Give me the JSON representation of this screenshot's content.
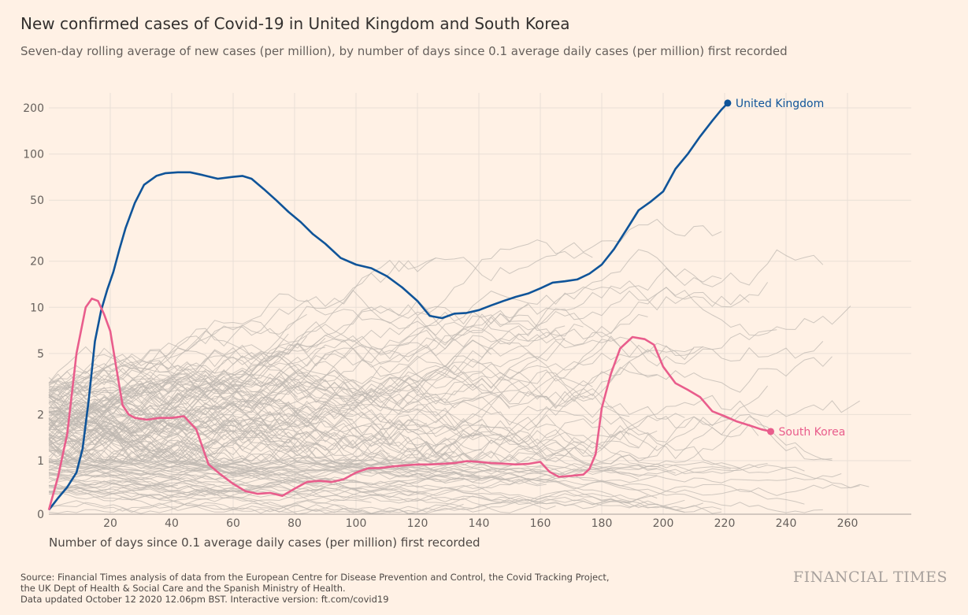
{
  "chart_data": {
    "type": "line",
    "title": "New confirmed cases of Covid-19 in United Kingdom and South Korea",
    "subtitle": "Seven-day rolling average of new cases (per million), by number of days since 0.1 average daily cases (per million) first recorded",
    "xlabel": "Number of days since 0.1 average daily cases (per million) first recorded",
    "ylabel": "",
    "x_scale": "linear",
    "y_scale": "log",
    "xlim": [
      0,
      280
    ],
    "ylim": [
      0.1,
      250
    ],
    "x_ticks": [
      20,
      40,
      60,
      80,
      100,
      120,
      140,
      160,
      180,
      200,
      220,
      240,
      260
    ],
    "y_ticks": [
      {
        "value": 0.1,
        "label": "0"
      },
      {
        "value": 1,
        "label": "1"
      },
      {
        "value": 2,
        "label": "2"
      },
      {
        "value": 5,
        "label": "5"
      },
      {
        "value": 10,
        "label": "10"
      },
      {
        "value": 20,
        "label": "20"
      },
      {
        "value": 50,
        "label": "50"
      },
      {
        "value": 100,
        "label": "100"
      },
      {
        "value": 200,
        "label": "200"
      }
    ],
    "grid": true,
    "background_lines": "many other countries (grey, unlabeled)",
    "series": [
      {
        "name": "United Kingdom",
        "color": "#0f5499",
        "points": [
          [
            0,
            0.12
          ],
          [
            3,
            0.2
          ],
          [
            6,
            0.32
          ],
          [
            9,
            0.6
          ],
          [
            11,
            1.2
          ],
          [
            13,
            2.5
          ],
          [
            15,
            6
          ],
          [
            17,
            9.5
          ],
          [
            19,
            13
          ],
          [
            21,
            17
          ],
          [
            23,
            24
          ],
          [
            25,
            33
          ],
          [
            28,
            48
          ],
          [
            31,
            63
          ],
          [
            35,
            72
          ],
          [
            38,
            75
          ],
          [
            42,
            76
          ],
          [
            46,
            76
          ],
          [
            50,
            73
          ],
          [
            55,
            69
          ],
          [
            60,
            71
          ],
          [
            63,
            72
          ],
          [
            66,
            69
          ],
          [
            70,
            59
          ],
          [
            74,
            50
          ],
          [
            78,
            42
          ],
          [
            82,
            36
          ],
          [
            86,
            30
          ],
          [
            90,
            26
          ],
          [
            95,
            21
          ],
          [
            100,
            19
          ],
          [
            105,
            18
          ],
          [
            110,
            16
          ],
          [
            115,
            13.5
          ],
          [
            120,
            11
          ],
          [
            124,
            8.8
          ],
          [
            128,
            8.5
          ],
          [
            132,
            9.1
          ],
          [
            136,
            9.2
          ],
          [
            140,
            9.6
          ],
          [
            144,
            10.3
          ],
          [
            148,
            11
          ],
          [
            152,
            11.7
          ],
          [
            156,
            12.3
          ],
          [
            160,
            13.3
          ],
          [
            164,
            14.5
          ],
          [
            168,
            14.8
          ],
          [
            172,
            15.2
          ],
          [
            176,
            16.6
          ],
          [
            180,
            19
          ],
          [
            184,
            24
          ],
          [
            188,
            32
          ],
          [
            192,
            43
          ],
          [
            196,
            49
          ],
          [
            200,
            57
          ],
          [
            204,
            80
          ],
          [
            208,
            100
          ],
          [
            212,
            130
          ],
          [
            216,
            165
          ],
          [
            219,
            195
          ],
          [
            221,
            215
          ]
        ]
      },
      {
        "name": "South Korea",
        "color": "#e95d8c",
        "points": [
          [
            0,
            0.12
          ],
          [
            3,
            0.5
          ],
          [
            6,
            1.5
          ],
          [
            9,
            5
          ],
          [
            12,
            10
          ],
          [
            14,
            11.4
          ],
          [
            16,
            11
          ],
          [
            18,
            9
          ],
          [
            20,
            7
          ],
          [
            22,
            4
          ],
          [
            24,
            2.3
          ],
          [
            26,
            2
          ],
          [
            28,
            1.9
          ],
          [
            32,
            1.85
          ],
          [
            36,
            1.9
          ],
          [
            40,
            1.9
          ],
          [
            44,
            1.95
          ],
          [
            48,
            1.6
          ],
          [
            52,
            0.85
          ],
          [
            56,
            0.55
          ],
          [
            60,
            0.37
          ],
          [
            64,
            0.27
          ],
          [
            68,
            0.24
          ],
          [
            72,
            0.25
          ],
          [
            76,
            0.22
          ],
          [
            80,
            0.3
          ],
          [
            84,
            0.4
          ],
          [
            88,
            0.42
          ],
          [
            92,
            0.4
          ],
          [
            96,
            0.45
          ],
          [
            100,
            0.6
          ],
          [
            104,
            0.72
          ],
          [
            108,
            0.73
          ],
          [
            112,
            0.78
          ],
          [
            116,
            0.82
          ],
          [
            120,
            0.85
          ],
          [
            124,
            0.85
          ],
          [
            128,
            0.87
          ],
          [
            132,
            0.9
          ],
          [
            136,
            0.98
          ],
          [
            140,
            0.95
          ],
          [
            144,
            0.9
          ],
          [
            148,
            0.88
          ],
          [
            152,
            0.85
          ],
          [
            156,
            0.87
          ],
          [
            160,
            0.95
          ],
          [
            163,
            0.62
          ],
          [
            166,
            0.5
          ],
          [
            170,
            0.52
          ],
          [
            174,
            0.55
          ],
          [
            176,
            0.7
          ],
          [
            178,
            1.1
          ],
          [
            180,
            2.2
          ],
          [
            183,
            3.7
          ],
          [
            186,
            5.4
          ],
          [
            190,
            6.4
          ],
          [
            194,
            6.2
          ],
          [
            197,
            5.7
          ],
          [
            200,
            4.1
          ],
          [
            204,
            3.2
          ],
          [
            208,
            2.9
          ],
          [
            212,
            2.6
          ],
          [
            216,
            2.1
          ],
          [
            220,
            1.95
          ],
          [
            224,
            1.8
          ],
          [
            228,
            1.7
          ],
          [
            232,
            1.6
          ],
          [
            235,
            1.55
          ]
        ]
      }
    ]
  },
  "labels": {
    "uk": "United Kingdom",
    "korea": "South Korea"
  },
  "footer": {
    "source_line1": "Source: Financial Times analysis of data from the European Centre for Disease Prevention and Control, the Covid Tracking Project,",
    "source_line2": "the UK Dept of Health & Social Care and the Spanish Ministry of Health.",
    "source_line3": "Data updated October 12 2020 12.06pm BST. Interactive version: ft.com/covid19",
    "brand": "FINANCIAL TIMES"
  },
  "colors": {
    "background": "#fff1e5",
    "grid": "#e9dfd6",
    "background_lines": "#bfb8b2",
    "uk": "#0f5499",
    "korea": "#e95d8c"
  }
}
